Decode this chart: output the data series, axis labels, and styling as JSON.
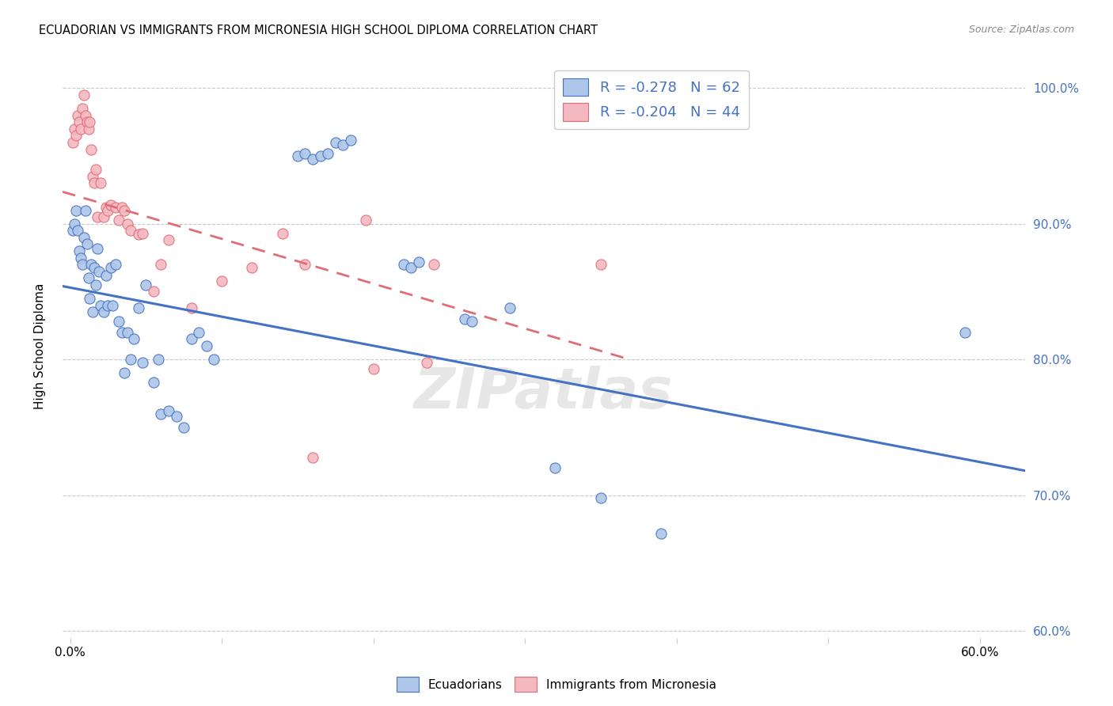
{
  "title": "ECUADORIAN VS IMMIGRANTS FROM MICRONESIA HIGH SCHOOL DIPLOMA CORRELATION CHART",
  "source": "Source: ZipAtlas.com",
  "ylabel": "High School Diploma",
  "xlim": [
    -0.005,
    0.63
  ],
  "ylim": [
    0.595,
    1.025
  ],
  "legend_labels": [
    "Ecuadorians",
    "Immigrants from Micronesia"
  ],
  "R_blue": -0.278,
  "N_blue": 62,
  "R_pink": -0.204,
  "N_pink": 44,
  "blue_color": "#aec6e8",
  "pink_color": "#f4b8c1",
  "blue_line_color": "#4472c4",
  "pink_line_color": "#e06c75",
  "watermark": "ZIPatlas",
  "blue_line_x0": 0.0,
  "blue_line_y0": 0.853,
  "blue_line_x1": 0.42,
  "blue_line_y1": 0.763,
  "pink_line_x0": 0.0,
  "pink_line_y0": 0.922,
  "pink_line_x1": 0.36,
  "pink_line_y1": 0.803,
  "blue_scatter_x": [
    0.002,
    0.003,
    0.004,
    0.005,
    0.006,
    0.007,
    0.008,
    0.009,
    0.01,
    0.011,
    0.012,
    0.013,
    0.014,
    0.015,
    0.016,
    0.017,
    0.018,
    0.019,
    0.02,
    0.022,
    0.024,
    0.025,
    0.027,
    0.028,
    0.03,
    0.032,
    0.034,
    0.036,
    0.038,
    0.04,
    0.042,
    0.045,
    0.048,
    0.05,
    0.055,
    0.058,
    0.06,
    0.065,
    0.07,
    0.075,
    0.08,
    0.085,
    0.09,
    0.095,
    0.15,
    0.155,
    0.16,
    0.165,
    0.17,
    0.175,
    0.18,
    0.185,
    0.22,
    0.225,
    0.23,
    0.26,
    0.265,
    0.29,
    0.32,
    0.35,
    0.39,
    0.59
  ],
  "blue_scatter_y": [
    0.895,
    0.9,
    0.91,
    0.895,
    0.88,
    0.875,
    0.87,
    0.89,
    0.91,
    0.885,
    0.86,
    0.845,
    0.87,
    0.835,
    0.868,
    0.855,
    0.882,
    0.865,
    0.84,
    0.835,
    0.862,
    0.84,
    0.868,
    0.84,
    0.87,
    0.828,
    0.82,
    0.79,
    0.82,
    0.8,
    0.815,
    0.838,
    0.798,
    0.855,
    0.783,
    0.8,
    0.76,
    0.762,
    0.758,
    0.75,
    0.815,
    0.82,
    0.81,
    0.8,
    0.95,
    0.952,
    0.948,
    0.95,
    0.952,
    0.96,
    0.958,
    0.962,
    0.87,
    0.868,
    0.872,
    0.83,
    0.828,
    0.838,
    0.72,
    0.698,
    0.672,
    0.82
  ],
  "pink_scatter_x": [
    0.002,
    0.003,
    0.004,
    0.005,
    0.006,
    0.007,
    0.008,
    0.009,
    0.01,
    0.011,
    0.012,
    0.013,
    0.014,
    0.015,
    0.016,
    0.017,
    0.018,
    0.02,
    0.022,
    0.024,
    0.025,
    0.027,
    0.03,
    0.032,
    0.034,
    0.036,
    0.038,
    0.04,
    0.045,
    0.048,
    0.055,
    0.06,
    0.065,
    0.08,
    0.1,
    0.12,
    0.14,
    0.155,
    0.16,
    0.195,
    0.2,
    0.235,
    0.24,
    0.35
  ],
  "pink_scatter_y": [
    0.96,
    0.97,
    0.965,
    0.98,
    0.975,
    0.97,
    0.985,
    0.995,
    0.98,
    0.975,
    0.97,
    0.975,
    0.955,
    0.935,
    0.93,
    0.94,
    0.905,
    0.93,
    0.905,
    0.912,
    0.91,
    0.914,
    0.912,
    0.903,
    0.912,
    0.91,
    0.9,
    0.895,
    0.892,
    0.893,
    0.85,
    0.87,
    0.888,
    0.838,
    0.858,
    0.868,
    0.893,
    0.87,
    0.728,
    0.903,
    0.793,
    0.798,
    0.87,
    0.87
  ]
}
